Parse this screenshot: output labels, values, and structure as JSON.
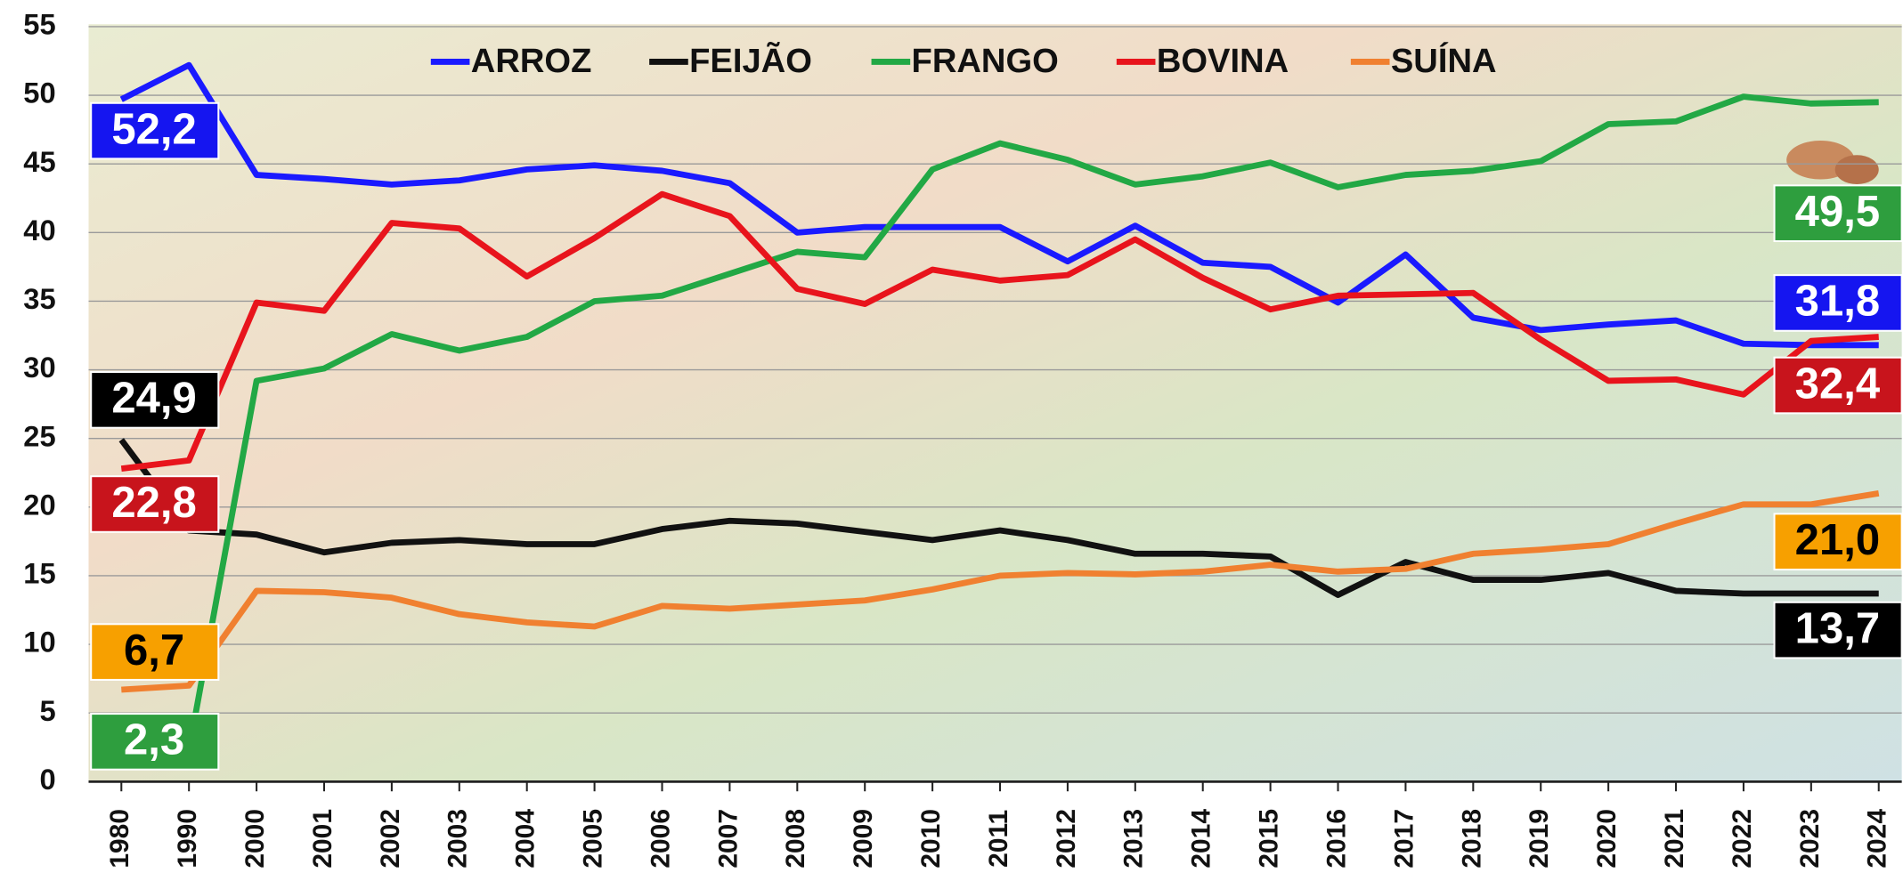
{
  "chart_data": {
    "type": "line",
    "categories": [
      "1980",
      "1990",
      "2000",
      "2001",
      "2002",
      "2003",
      "2004",
      "2005",
      "2006",
      "2007",
      "2008",
      "2009",
      "2010",
      "2011",
      "2012",
      "2013",
      "2014",
      "2015",
      "2016",
      "2017",
      "2018",
      "2019",
      "2020",
      "2021",
      "2022",
      "2023",
      "2024"
    ],
    "ylim": [
      0,
      55
    ],
    "yticks": [
      0,
      5,
      10,
      15,
      20,
      25,
      30,
      35,
      40,
      45,
      50,
      55
    ],
    "grid": true,
    "series": [
      {
        "name": "ARROZ",
        "color": "#1a1aff",
        "values": [
          49.7,
          52.2,
          44.2,
          43.9,
          43.5,
          43.8,
          44.6,
          44.9,
          44.5,
          43.6,
          40.0,
          40.4,
          40.4,
          40.4,
          37.9,
          40.5,
          37.8,
          37.5,
          34.9,
          38.4,
          33.8,
          32.9,
          33.3,
          33.6,
          31.9,
          31.8,
          31.8
        ],
        "value_labels": [
          null,
          "52,2",
          null,
          null,
          null,
          null,
          null,
          null,
          null,
          null,
          null,
          null,
          null,
          null,
          null,
          null,
          null,
          null,
          null,
          null,
          null,
          null,
          null,
          null,
          null,
          null,
          "31,8"
        ]
      },
      {
        "name": "FEIJÃO",
        "color": "#111111",
        "values": [
          24.9,
          18.3,
          18.0,
          16.7,
          17.4,
          17.6,
          17.3,
          17.3,
          18.4,
          19.0,
          18.8,
          18.2,
          17.6,
          18.3,
          17.6,
          16.6,
          16.6,
          16.4,
          13.6,
          16.0,
          14.7,
          14.7,
          15.2,
          13.9,
          13.7,
          13.7,
          13.7
        ],
        "value_labels": [
          "24,9",
          null,
          null,
          null,
          null,
          null,
          null,
          null,
          null,
          null,
          null,
          null,
          null,
          null,
          null,
          null,
          null,
          null,
          null,
          null,
          null,
          null,
          null,
          null,
          null,
          null,
          "13,7"
        ]
      },
      {
        "name": "FRANGO",
        "color": "#22a845",
        "values": [
          null,
          2.3,
          29.2,
          30.1,
          32.6,
          31.4,
          32.4,
          35.0,
          35.4,
          37.0,
          38.6,
          38.2,
          44.6,
          46.5,
          45.3,
          43.5,
          44.1,
          45.1,
          43.3,
          44.2,
          44.5,
          45.2,
          47.9,
          48.1,
          49.9,
          49.4,
          49.5
        ],
        "value_labels": [
          null,
          "2,3",
          null,
          null,
          null,
          null,
          null,
          null,
          null,
          null,
          null,
          null,
          null,
          null,
          null,
          null,
          null,
          null,
          null,
          null,
          null,
          null,
          null,
          null,
          null,
          null,
          "49,5"
        ]
      },
      {
        "name": "BOVINA",
        "color": "#e8141c",
        "values": [
          22.8,
          23.4,
          34.9,
          34.3,
          40.7,
          40.3,
          36.8,
          39.6,
          42.8,
          41.2,
          35.9,
          34.8,
          37.3,
          36.5,
          36.9,
          39.5,
          36.7,
          34.4,
          35.4,
          35.5,
          35.6,
          32.2,
          29.2,
          29.3,
          28.2,
          32.1,
          32.4
        ],
        "value_labels": [
          "22,8",
          null,
          null,
          null,
          null,
          null,
          null,
          null,
          null,
          null,
          null,
          null,
          null,
          null,
          null,
          null,
          null,
          null,
          null,
          null,
          null,
          null,
          null,
          null,
          null,
          null,
          "32,4"
        ]
      },
      {
        "name": "SUÍNA",
        "color": "#f08030",
        "values": [
          6.7,
          7.0,
          13.9,
          13.8,
          13.4,
          12.2,
          11.6,
          11.3,
          12.8,
          12.6,
          12.9,
          13.2,
          14.0,
          15.0,
          15.2,
          15.1,
          15.3,
          15.8,
          15.3,
          15.5,
          16.6,
          16.9,
          17.3,
          18.8,
          20.2,
          20.2,
          21.0
        ],
        "value_labels": [
          "6,7",
          null,
          null,
          null,
          null,
          null,
          null,
          null,
          null,
          null,
          null,
          null,
          null,
          null,
          null,
          null,
          null,
          null,
          null,
          null,
          null,
          null,
          null,
          null,
          null,
          null,
          "21,0"
        ]
      }
    ]
  }
}
